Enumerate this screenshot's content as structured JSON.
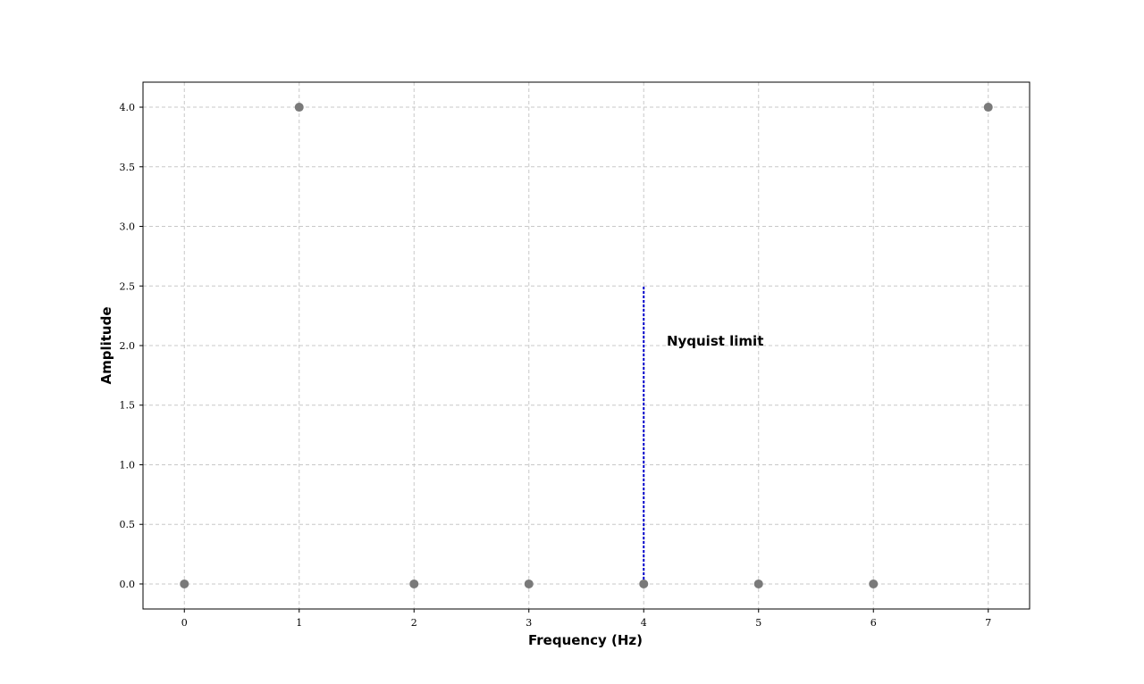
{
  "chart_data": {
    "type": "scatter",
    "xlabel": "Frequency (Hz)",
    "ylabel": "Amplitude",
    "xlim": [
      -0.36,
      7.36
    ],
    "ylim": [
      -0.21,
      4.21
    ],
    "x_ticks": [
      0,
      1,
      2,
      3,
      4,
      5,
      6,
      7
    ],
    "y_ticks": [
      0.0,
      0.5,
      1.0,
      1.5,
      2.0,
      2.5,
      3.0,
      3.5,
      4.0
    ],
    "grid": true,
    "series": [
      {
        "x": [
          0,
          1,
          2,
          3,
          4,
          5,
          6,
          7
        ],
        "y": [
          0.0,
          4.0,
          0.0,
          0.0,
          0.0,
          0.0,
          0.0,
          4.0
        ],
        "color": "#7a7a7a"
      }
    ],
    "vline": {
      "x": 4,
      "y_from": 0.0,
      "y_to": 2.5,
      "color": "#0000cc",
      "style": "dotted"
    },
    "annotation": {
      "text": "Nyquist limit",
      "x": 4.2,
      "y": 2.0
    }
  }
}
